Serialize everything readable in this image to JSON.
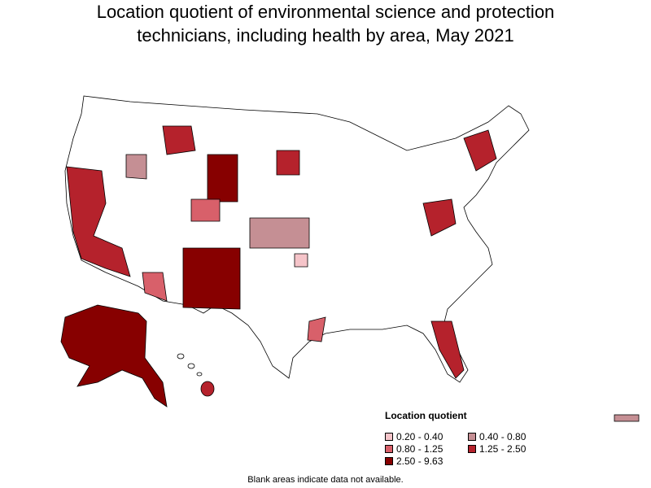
{
  "title": {
    "lines": [
      "Location quotient of environmental science and protection",
      "technicians, including health by area, May 2021"
    ]
  },
  "legend": {
    "title": "Location quotient",
    "items": [
      {
        "label": "0.20 - 0.40",
        "color": "#f5c4c9"
      },
      {
        "label": "0.40 - 0.80",
        "color": "#c58f94"
      },
      {
        "label": "0.80 - 1.25",
        "color": "#d8606a"
      },
      {
        "label": "1.25 - 2.50",
        "color": "#b5222c"
      },
      {
        "label": "2.50 - 9.63",
        "color": "#870000"
      }
    ]
  },
  "footnote": "Blank areas indicate data not available."
}
